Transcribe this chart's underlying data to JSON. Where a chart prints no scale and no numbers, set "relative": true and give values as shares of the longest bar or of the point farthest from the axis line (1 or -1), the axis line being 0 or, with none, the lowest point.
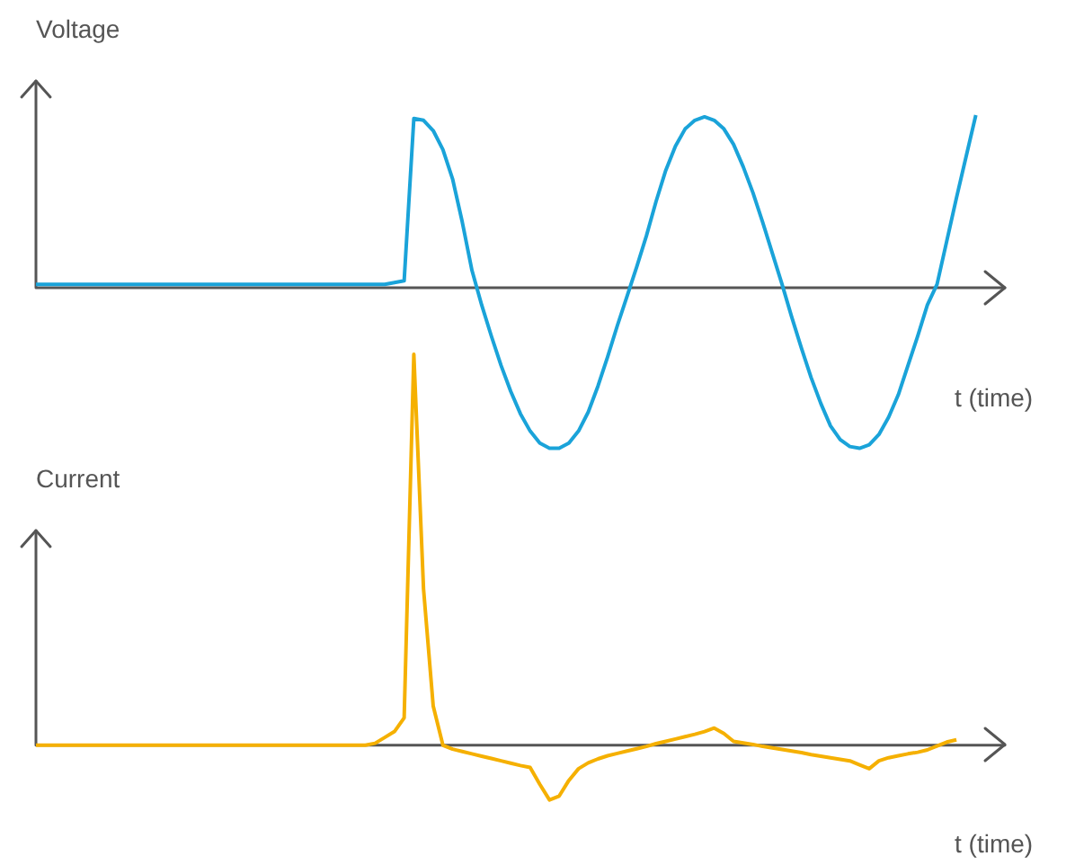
{
  "chart_data": [
    {
      "type": "line",
      "title": "Voltage",
      "xlabel": "t (time)",
      "relative": true,
      "color": "#1aa3d9",
      "categories": [
        null,
        null,
        null,
        null,
        null,
        null,
        null,
        null,
        null,
        null,
        null,
        null,
        null,
        null,
        null,
        null,
        null,
        null,
        null,
        null,
        null,
        null,
        null,
        null,
        null,
        null,
        null,
        null,
        null,
        null,
        null,
        null,
        null,
        null,
        null,
        null,
        null,
        null,
        null,
        null,
        null,
        null,
        null,
        null,
        null,
        null,
        null,
        null,
        null,
        null,
        null,
        null,
        null,
        null,
        null,
        null,
        null,
        null,
        null,
        null,
        null,
        null,
        null,
        null,
        null,
        null,
        null,
        null,
        null,
        null,
        null,
        null,
        null,
        null,
        null,
        null,
        null,
        null,
        null,
        null,
        null,
        null,
        null,
        null,
        null,
        null,
        null,
        null,
        null,
        null,
        null,
        null,
        null,
        null,
        null,
        null,
        null,
        null,
        null,
        null,
        null
      ],
      "values": [
        0.02,
        0.02,
        0.02,
        0.02,
        0.02,
        0.02,
        0.02,
        0.02,
        0.02,
        0.02,
        0.02,
        0.02,
        0.02,
        0.02,
        0.02,
        0.02,
        0.02,
        0.02,
        0.02,
        0.02,
        0.02,
        0.02,
        0.02,
        0.02,
        0.02,
        0.02,
        0.02,
        0.02,
        0.02,
        0.02,
        0.02,
        0.02,
        0.02,
        0.02,
        0.02,
        0.02,
        0.02,
        0.03,
        0.04,
        0.98,
        0.97,
        0.91,
        0.8,
        0.63,
        0.38,
        0.1,
        -0.1,
        -0.28,
        -0.45,
        -0.6,
        -0.73,
        -0.83,
        -0.9,
        -0.93,
        -0.93,
        -0.9,
        -0.83,
        -0.72,
        -0.57,
        -0.4,
        -0.22,
        -0.05,
        0.12,
        0.3,
        0.5,
        0.68,
        0.82,
        0.92,
        0.97,
        0.99,
        0.97,
        0.92,
        0.83,
        0.7,
        0.55,
        0.38,
        0.2,
        0.02,
        -0.17,
        -0.35,
        -0.52,
        -0.67,
        -0.8,
        -0.88,
        -0.92,
        -0.93,
        -0.91,
        -0.85,
        -0.75,
        -0.62,
        -0.45,
        -0.28,
        -0.1,
        0.02,
        0.27,
        0.52,
        0.76,
        1,
        null,
        null,
        null
      ]
    },
    {
      "type": "line",
      "title": "Current",
      "xlabel": "t (time)",
      "relative": true,
      "color": "#f5b000",
      "categories": [
        null,
        null,
        null,
        null,
        null,
        null,
        null,
        null,
        null,
        null,
        null,
        null,
        null,
        null,
        null,
        null,
        null,
        null,
        null,
        null,
        null,
        null,
        null,
        null,
        null,
        null,
        null,
        null,
        null,
        null,
        null,
        null,
        null,
        null,
        null,
        null,
        null,
        null,
        null,
        null,
        null,
        null,
        null,
        null,
        null,
        null,
        null,
        null,
        null,
        null,
        null,
        null,
        null,
        null,
        null,
        null,
        null,
        null,
        null,
        null,
        null,
        null,
        null,
        null,
        null,
        null,
        null,
        null,
        null,
        null,
        null,
        null,
        null,
        null,
        null,
        null,
        null,
        null,
        null,
        null,
        null,
        null,
        null,
        null,
        null,
        null,
        null,
        null,
        null,
        null,
        null,
        null,
        null,
        null,
        null,
        null,
        null,
        null,
        null,
        null,
        null
      ],
      "values": [
        0,
        0,
        0,
        0,
        0,
        0,
        0,
        0,
        0,
        0,
        0,
        0,
        0,
        0,
        0,
        0,
        0,
        0,
        0,
        0,
        0,
        0,
        0,
        0,
        0,
        0,
        0,
        0,
        0,
        0,
        0,
        0,
        0,
        0,
        0,
        0.005,
        0.02,
        0.035,
        0.07,
        1,
        0.4,
        0.1,
        0,
        -0.01,
        -0.016,
        -0.022,
        -0.028,
        -0.034,
        -0.04,
        -0.046,
        -0.052,
        -0.057,
        -0.1,
        -0.14,
        -0.13,
        -0.09,
        -0.06,
        -0.045,
        -0.035,
        -0.027,
        -0.021,
        -0.015,
        -0.009,
        -0.003,
        0.004,
        0.01,
        0.016,
        0.022,
        0.028,
        0.035,
        0.044,
        0.03,
        0.01,
        0.006,
        0.002,
        -0.003,
        -0.007,
        -0.011,
        -0.015,
        -0.019,
        -0.024,
        -0.028,
        -0.032,
        -0.036,
        -0.04,
        -0.05,
        -0.06,
        -0.04,
        -0.032,
        -0.027,
        -0.022,
        -0.018,
        -0.012,
        -0.002,
        0.008,
        0.014,
        null,
        null,
        null,
        null,
        null
      ]
    }
  ]
}
